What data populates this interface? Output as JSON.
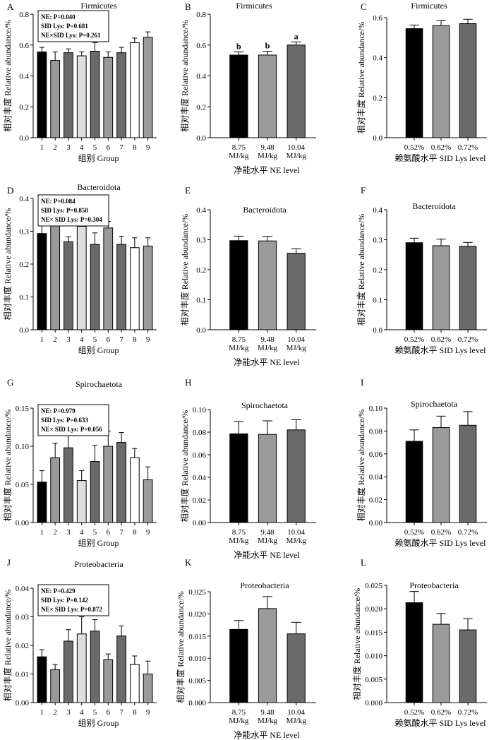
{
  "colors": {
    "black": "#000000",
    "gray9": "#9a9a9a",
    "gray4": "#dedede",
    "gray7": "#6a6a6a",
    "white": "#ffffff",
    "nelevel": [
      "#000000",
      "#9a9a9a",
      "#6a6a6a"
    ],
    "group": [
      "#000000",
      "#9a9a9a",
      "#6a6a6a",
      "#dedede",
      "#6a6a6a",
      "#9a9a9a",
      "#6a6a6a",
      "#ffffff",
      "#9a9a9a"
    ]
  },
  "chart_data": [
    {
      "id": "A",
      "type": "bar",
      "panel_label": "A",
      "title": "Firmicutes",
      "ylabel": "相对丰度 Relative abundance/%",
      "xlabel": "组别 Group",
      "categories": [
        "1",
        "2",
        "3",
        "4",
        "5",
        "6",
        "7",
        "8",
        "9"
      ],
      "values": [
        0.555,
        0.5,
        0.55,
        0.53,
        0.56,
        0.52,
        0.55,
        0.615,
        0.65
      ],
      "errors": [
        0.03,
        0.055,
        0.025,
        0.025,
        0.055,
        0.035,
        0.035,
        0.03,
        0.035
      ],
      "ylim": [
        0,
        0.8
      ],
      "yticks": [
        "0.0",
        "0.2",
        "0.4",
        "0.6",
        "0.8"
      ],
      "stats": [
        "NE: P=0.040",
        "SID Lys: P=0.681",
        "NE×SID Lys: P=0.261"
      ]
    },
    {
      "id": "B",
      "type": "bar",
      "panel_label": "B",
      "title": "Firmicutes",
      "ylabel": "相对丰度 Relative abundance/%",
      "xlabel": "净能水平 NE level",
      "categories": [
        "8.75 MJ/kg",
        "9.48 MJ/kg",
        "10.04 MJ/kg"
      ],
      "values": [
        0.535,
        0.535,
        0.6
      ],
      "errors": [
        0.02,
        0.025,
        0.02
      ],
      "letters": [
        "b",
        "b",
        "a"
      ],
      "ylim": [
        0,
        0.8
      ],
      "yticks": [
        "0.0",
        "0.2",
        "0.4",
        "0.6",
        "0.8"
      ]
    },
    {
      "id": "C",
      "type": "bar",
      "panel_label": "C",
      "title": "Firmicutes",
      "ylabel": "相对丰度 Relative abundance/%",
      "xlabel": "赖氨酸水平 SID Lys level",
      "categories": [
        "0.52%",
        "0.62%",
        "0.72%"
      ],
      "values": [
        0.545,
        0.56,
        0.57
      ],
      "errors": [
        0.018,
        0.025,
        0.022
      ],
      "ylim": [
        0,
        0.6
      ],
      "yticks": [
        "0.0",
        "0.2",
        "0.4",
        "0.6"
      ]
    },
    {
      "id": "D",
      "type": "bar",
      "panel_label": "D",
      "title": "Bacteroidota",
      "ylabel": "相对丰度 Relative abundance/%",
      "xlabel": "组别 Group",
      "categories": [
        "1",
        "2",
        "3",
        "4",
        "5",
        "6",
        "7",
        "8",
        "9"
      ],
      "values": [
        0.293,
        0.332,
        0.268,
        0.315,
        0.26,
        0.31,
        0.26,
        0.25,
        0.255
      ],
      "errors": [
        0.025,
        0.035,
        0.015,
        0.03,
        0.035,
        0.02,
        0.025,
        0.03,
        0.025
      ],
      "ylim": [
        0,
        0.4
      ],
      "yticks": [
        "0.0",
        "0.1",
        "0.2",
        "0.3",
        "0.4"
      ],
      "stats": [
        "NE: P=0.084",
        "SID Lys: P=0.850",
        "NE× SID Lys: P=0.304"
      ]
    },
    {
      "id": "E",
      "type": "bar",
      "panel_label": "E",
      "title": "Bacteroidota",
      "ylabel": "相对丰度 Relative abundance/%",
      "xlabel": "净能水平 NE level",
      "categories": [
        "8.75 MJ/kg",
        "9.48 MJ/kg",
        "10.04 MJ/kg"
      ],
      "values": [
        0.297,
        0.296,
        0.255
      ],
      "errors": [
        0.015,
        0.015,
        0.015
      ],
      "ylim": [
        0,
        0.4
      ],
      "yticks": [
        "0.0",
        "0.1",
        "0.2",
        "0.3",
        "0.4"
      ]
    },
    {
      "id": "F",
      "type": "bar",
      "panel_label": "F",
      "title": "Bacteroidota",
      "ylabel": "相对丰度 Relative abundance/%",
      "xlabel": "赖氨酸水平 SID Lys level",
      "categories": [
        "0.52%",
        "0.62%",
        "0.72%"
      ],
      "values": [
        0.29,
        0.28,
        0.278
      ],
      "errors": [
        0.015,
        0.022,
        0.013
      ],
      "ylim": [
        0,
        0.4
      ],
      "yticks": [
        "0.0",
        "0.1",
        "0.2",
        "0.3",
        "0.4"
      ]
    },
    {
      "id": "G",
      "type": "bar",
      "panel_label": "G",
      "title": "Spirochaetota",
      "ylabel": "相对丰度 Relative abundance/%",
      "xlabel": "组别 Group",
      "categories": [
        "1",
        "2",
        "3",
        "4",
        "5",
        "6",
        "7",
        "8",
        "9"
      ],
      "values": [
        0.053,
        0.085,
        0.098,
        0.055,
        0.08,
        0.1,
        0.105,
        0.085,
        0.056
      ],
      "errors": [
        0.015,
        0.019,
        0.018,
        0.013,
        0.021,
        0.02,
        0.013,
        0.012,
        0.017
      ],
      "ylim": [
        0,
        0.15
      ],
      "yticks": [
        "0.00",
        "0.05",
        "0.10",
        "0.15"
      ],
      "stats": [
        "NE: P=0.979",
        "SID Lys: P=0.633",
        "NE× SID Lys: P=0.056"
      ]
    },
    {
      "id": "H",
      "type": "bar",
      "panel_label": "H",
      "title": "Spirochaetota",
      "ylabel": "相对丰度 Relative abundance/%",
      "xlabel": "净能水平 NE level",
      "categories": [
        "8.75 MJ/kg",
        "9.48 MJ/kg",
        "10.04 MJ/kg"
      ],
      "values": [
        0.0785,
        0.078,
        0.082
      ],
      "errors": [
        0.011,
        0.012,
        0.009
      ],
      "ylim": [
        0,
        0.1
      ],
      "yticks": [
        "0.00",
        "0.02",
        "0.04",
        "0.06",
        "0.08",
        "0.10"
      ]
    },
    {
      "id": "I",
      "type": "bar",
      "panel_label": "I",
      "title": "Spirochaetota",
      "ylabel": "相对丰度 Relative abundance/%",
      "xlabel": "赖氨酸水平 SID Lys level",
      "categories": [
        "0.52%",
        "0.62%",
        "0.72%"
      ],
      "values": [
        0.071,
        0.083,
        0.085
      ],
      "errors": [
        0.01,
        0.01,
        0.012
      ],
      "ylim": [
        0,
        0.1
      ],
      "yticks": [
        "0.00",
        "0.02",
        "0.04",
        "0.06",
        "0.08",
        "0.10"
      ]
    },
    {
      "id": "J",
      "type": "bar",
      "panel_label": "J",
      "title": "Proteobacteria",
      "ylabel": "相对丰度 Relative abundance/%",
      "xlabel": "组别 Group",
      "categories": [
        "1",
        "2",
        "3",
        "4",
        "5",
        "6",
        "7",
        "8",
        "9"
      ],
      "values": [
        0.016,
        0.0115,
        0.0215,
        0.024,
        0.025,
        0.015,
        0.0233,
        0.0133,
        0.01
      ],
      "errors": [
        0.0025,
        0.0018,
        0.004,
        0.006,
        0.004,
        0.002,
        0.0035,
        0.003,
        0.0045
      ],
      "ylim": [
        0,
        0.04
      ],
      "yticks": [
        "0.00",
        "0.01",
        "0.02",
        "0.03",
        "0.04"
      ],
      "stats": [
        "NE: P=0.429",
        "SID Lys: P=0.142",
        "NE× SID Lys: P=0.872"
      ]
    },
    {
      "id": "K",
      "type": "bar",
      "panel_label": "K",
      "title": "Proteobacteria",
      "ylabel": "相对丰度 Relative abundance/%",
      "xlabel": "净能水平 NE level",
      "categories": [
        "8.75 MJ/kg",
        "9.48 MJ/kg",
        "10.04 MJ/kg"
      ],
      "values": [
        0.0165,
        0.0212,
        0.0155
      ],
      "errors": [
        0.002,
        0.0027,
        0.0026
      ],
      "ylim": [
        0,
        0.025
      ],
      "yticks": [
        "0.000",
        "0.005",
        "0.010",
        "0.015",
        "0.020",
        "0.025"
      ]
    },
    {
      "id": "L",
      "type": "bar",
      "panel_label": "L",
      "title": "Proteobacteria",
      "ylabel": "相对丰度 Relative abundance/%",
      "xlabel": "赖氨酸水平 SID Lys level",
      "categories": [
        "0.52%",
        "0.62%",
        "0.72%"
      ],
      "values": [
        0.0213,
        0.0167,
        0.0155
      ],
      "errors": [
        0.0024,
        0.0023,
        0.0024
      ],
      "ylim": [
        0,
        0.025
      ],
      "yticks": [
        "0.000",
        "0.005",
        "0.010",
        "0.015",
        "0.020",
        "0.025"
      ]
    }
  ]
}
